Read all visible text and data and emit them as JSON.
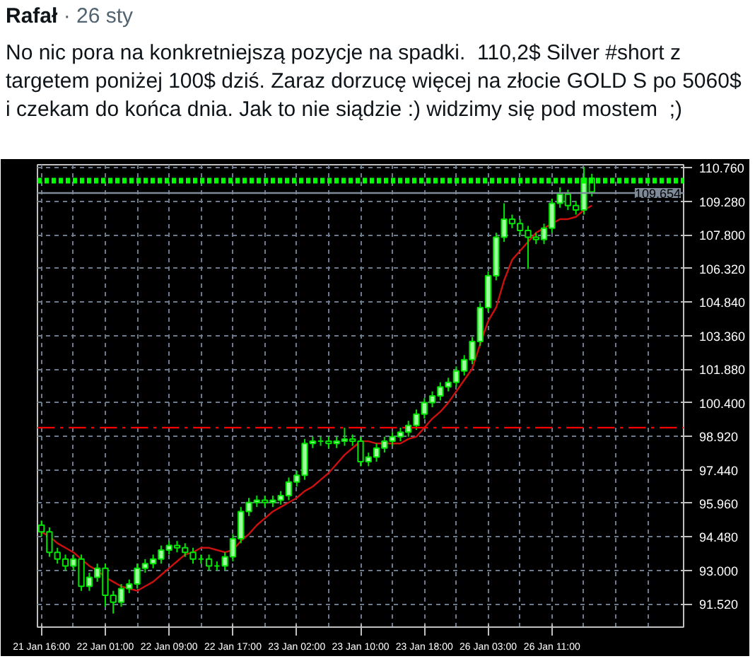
{
  "chart_data": {
    "type": "candlestick",
    "title": "Rafał",
    "subtitle": "· 26 sty",
    "annotations": [
      "No nic pora na konkretniejszą pozycje na spadki.  110,2$ Silver #short z targetem poniżej 100$ dziś. Zaraz dorzucę więcej na złocie GOLD S po 5060$ i czekam do końca dnia. Jak to nie siądzie :) widzimy się pod mostem  ;)"
    ],
    "categories": [
      "21 Jan 16:00",
      null,
      null,
      null,
      null,
      null,
      null,
      null,
      "22 Jan 01:00",
      null,
      null,
      null,
      null,
      null,
      null,
      null,
      "22 Jan 09:00",
      null,
      null,
      null,
      null,
      null,
      null,
      null,
      "22 Jan 17:00",
      null,
      null,
      null,
      null,
      null,
      null,
      null,
      "23 Jan 02:00",
      null,
      null,
      null,
      null,
      null,
      null,
      null,
      "23 Jan 10:00",
      null,
      null,
      null,
      null,
      null,
      null,
      null,
      "23 Jan 18:00",
      null,
      null,
      null,
      null,
      null,
      null,
      null,
      "26 Jan 03:00",
      null,
      null,
      null,
      null,
      null,
      null,
      null,
      "26 Jan 11:00",
      null,
      null,
      null,
      null,
      null
    ],
    "ohlc": [
      [
        95.0,
        95.2,
        94.5,
        94.7
      ],
      [
        94.7,
        94.9,
        93.6,
        93.8
      ],
      [
        93.8,
        94.0,
        93.3,
        93.5
      ],
      [
        93.5,
        93.7,
        93.0,
        93.2
      ],
      [
        93.2,
        93.7,
        93.0,
        93.5
      ],
      [
        93.5,
        93.7,
        92.1,
        92.3
      ],
      [
        92.3,
        92.9,
        92.1,
        92.7
      ],
      [
        92.7,
        93.3,
        92.5,
        93.1
      ],
      [
        93.1,
        93.3,
        91.4,
        91.9
      ],
      [
        91.9,
        92.1,
        91.1,
        91.6
      ],
      [
        91.6,
        92.4,
        91.4,
        92.2
      ],
      [
        92.2,
        92.6,
        92.0,
        92.4
      ],
      [
        92.4,
        93.3,
        92.2,
        93.1
      ],
      [
        93.1,
        93.5,
        92.9,
        93.3
      ],
      [
        93.3,
        93.7,
        93.1,
        93.5
      ],
      [
        93.5,
        94.1,
        93.3,
        93.9
      ],
      [
        93.9,
        94.3,
        93.7,
        94.1
      ],
      [
        94.1,
        94.3,
        93.8,
        94.0
      ],
      [
        94.0,
        94.2,
        93.6,
        93.8
      ],
      [
        93.8,
        94.0,
        93.3,
        93.5
      ],
      [
        93.5,
        93.7,
        93.3,
        93.5
      ],
      [
        93.5,
        93.7,
        93.0,
        93.2
      ],
      [
        93.2,
        93.4,
        93.0,
        93.2
      ],
      [
        93.2,
        93.8,
        93.0,
        93.6
      ],
      [
        93.6,
        94.6,
        93.4,
        94.4
      ],
      [
        94.4,
        95.8,
        94.2,
        95.6
      ],
      [
        95.6,
        96.2,
        95.4,
        96.0
      ],
      [
        96.0,
        96.3,
        95.8,
        96.1
      ],
      [
        96.1,
        96.3,
        95.8,
        96.0
      ],
      [
        96.0,
        96.3,
        95.8,
        96.1
      ],
      [
        96.1,
        96.5,
        95.9,
        96.3
      ],
      [
        96.3,
        97.1,
        96.1,
        96.9
      ],
      [
        96.9,
        97.4,
        96.7,
        97.2
      ],
      [
        97.2,
        98.8,
        97.0,
        98.6
      ],
      [
        98.6,
        98.9,
        98.4,
        98.7
      ],
      [
        98.7,
        98.9,
        98.5,
        98.7
      ],
      [
        98.7,
        98.9,
        98.4,
        98.6
      ],
      [
        98.6,
        98.9,
        98.4,
        98.7
      ],
      [
        98.7,
        99.3,
        98.5,
        98.8
      ],
      [
        98.8,
        99.0,
        98.5,
        98.7
      ],
      [
        98.7,
        98.9,
        97.6,
        97.8
      ],
      [
        97.8,
        98.2,
        97.6,
        98.0
      ],
      [
        98.0,
        98.6,
        97.8,
        98.4
      ],
      [
        98.4,
        98.9,
        98.2,
        98.7
      ],
      [
        98.7,
        99.1,
        98.5,
        98.9
      ],
      [
        98.9,
        99.3,
        98.7,
        99.1
      ],
      [
        99.1,
        99.6,
        98.9,
        99.4
      ],
      [
        99.4,
        100.1,
        99.2,
        99.9
      ],
      [
        99.9,
        100.6,
        99.7,
        100.4
      ],
      [
        100.4,
        100.9,
        100.2,
        100.7
      ],
      [
        100.7,
        101.3,
        100.5,
        101.1
      ],
      [
        101.1,
        101.5,
        100.9,
        101.3
      ],
      [
        101.3,
        102.0,
        101.1,
        101.8
      ],
      [
        101.8,
        102.5,
        101.6,
        102.3
      ],
      [
        102.3,
        103.3,
        102.1,
        103.1
      ],
      [
        103.1,
        104.8,
        102.9,
        104.6
      ],
      [
        104.6,
        106.2,
        104.4,
        106.0
      ],
      [
        106.0,
        107.9,
        105.8,
        107.7
      ],
      [
        107.7,
        109.2,
        107.5,
        108.5
      ],
      [
        108.5,
        108.7,
        108.1,
        108.3
      ],
      [
        108.3,
        108.5,
        107.8,
        108.0
      ],
      [
        108.0,
        108.2,
        106.3,
        107.7
      ],
      [
        107.7,
        107.9,
        107.4,
        107.6
      ],
      [
        107.6,
        108.3,
        107.4,
        108.1
      ],
      [
        108.1,
        109.4,
        107.9,
        109.2
      ],
      [
        109.2,
        109.9,
        109.0,
        109.6
      ],
      [
        109.6,
        109.8,
        108.9,
        109.1
      ],
      [
        109.1,
        109.3,
        108.7,
        108.9
      ],
      [
        108.9,
        110.8,
        108.7,
        110.3
      ],
      [
        110.3,
        110.5,
        109.5,
        109.7
      ]
    ],
    "series": [
      {
        "type": "line",
        "color": "#cc1010",
        "values": [
          94.7,
          94.5,
          94.2,
          94.0,
          93.8,
          93.5,
          93.2,
          93.0,
          92.7,
          92.5,
          92.3,
          92.2,
          92.1,
          92.3,
          92.5,
          92.8,
          93.1,
          93.4,
          93.7,
          93.8,
          94.0,
          94.0,
          93.9,
          93.8,
          93.9,
          94.3,
          94.6,
          95.0,
          95.3,
          95.6,
          95.8,
          96.0,
          96.2,
          96.5,
          96.7,
          97.0,
          97.3,
          97.7,
          98.1,
          98.4,
          98.7,
          98.7,
          98.6,
          98.6,
          98.6,
          98.6,
          98.8,
          98.9,
          99.3,
          99.7,
          100.0,
          100.4,
          100.9,
          101.4,
          101.9,
          103.0,
          104.0,
          104.6,
          105.8,
          106.7,
          107.1,
          107.5,
          107.9,
          108.1,
          108.3,
          108.5,
          108.5,
          108.6,
          108.9,
          109.1
        ]
      }
    ],
    "ylim": [
      90.5,
      110.9
    ],
    "yticks": [
      {
        "value": 91.52,
        "label": "91.520"
      },
      {
        "value": 93.0,
        "label": "93.000"
      },
      {
        "value": 94.48,
        "label": "94.480"
      },
      {
        "value": 95.96,
        "label": "95.960"
      },
      {
        "value": 97.44,
        "label": "97.440"
      },
      {
        "value": 98.92,
        "label": "98.920"
      },
      {
        "value": 100.4,
        "label": "100.400"
      },
      {
        "value": 101.88,
        "label": "101.880"
      },
      {
        "value": 103.36,
        "label": "103.360"
      },
      {
        "value": 104.84,
        "label": "104.840"
      },
      {
        "value": 106.32,
        "label": "106.320"
      },
      {
        "value": 107.8,
        "label": "107.800"
      },
      {
        "value": 109.28,
        "label": "109.280"
      },
      {
        "value": 110.76,
        "label": "110.760"
      }
    ],
    "ref_lines": [
      {
        "axis": "y",
        "value": 110.2,
        "color": "#00ff00",
        "line_style": "dotted"
      },
      {
        "axis": "y",
        "value": 109.654,
        "label": "109.654",
        "color": "#7f8a99",
        "line_style": "solid"
      },
      {
        "axis": "y",
        "value": 99.3,
        "color": "#ff0000",
        "line_style": "dashed"
      }
    ],
    "grid": true
  }
}
